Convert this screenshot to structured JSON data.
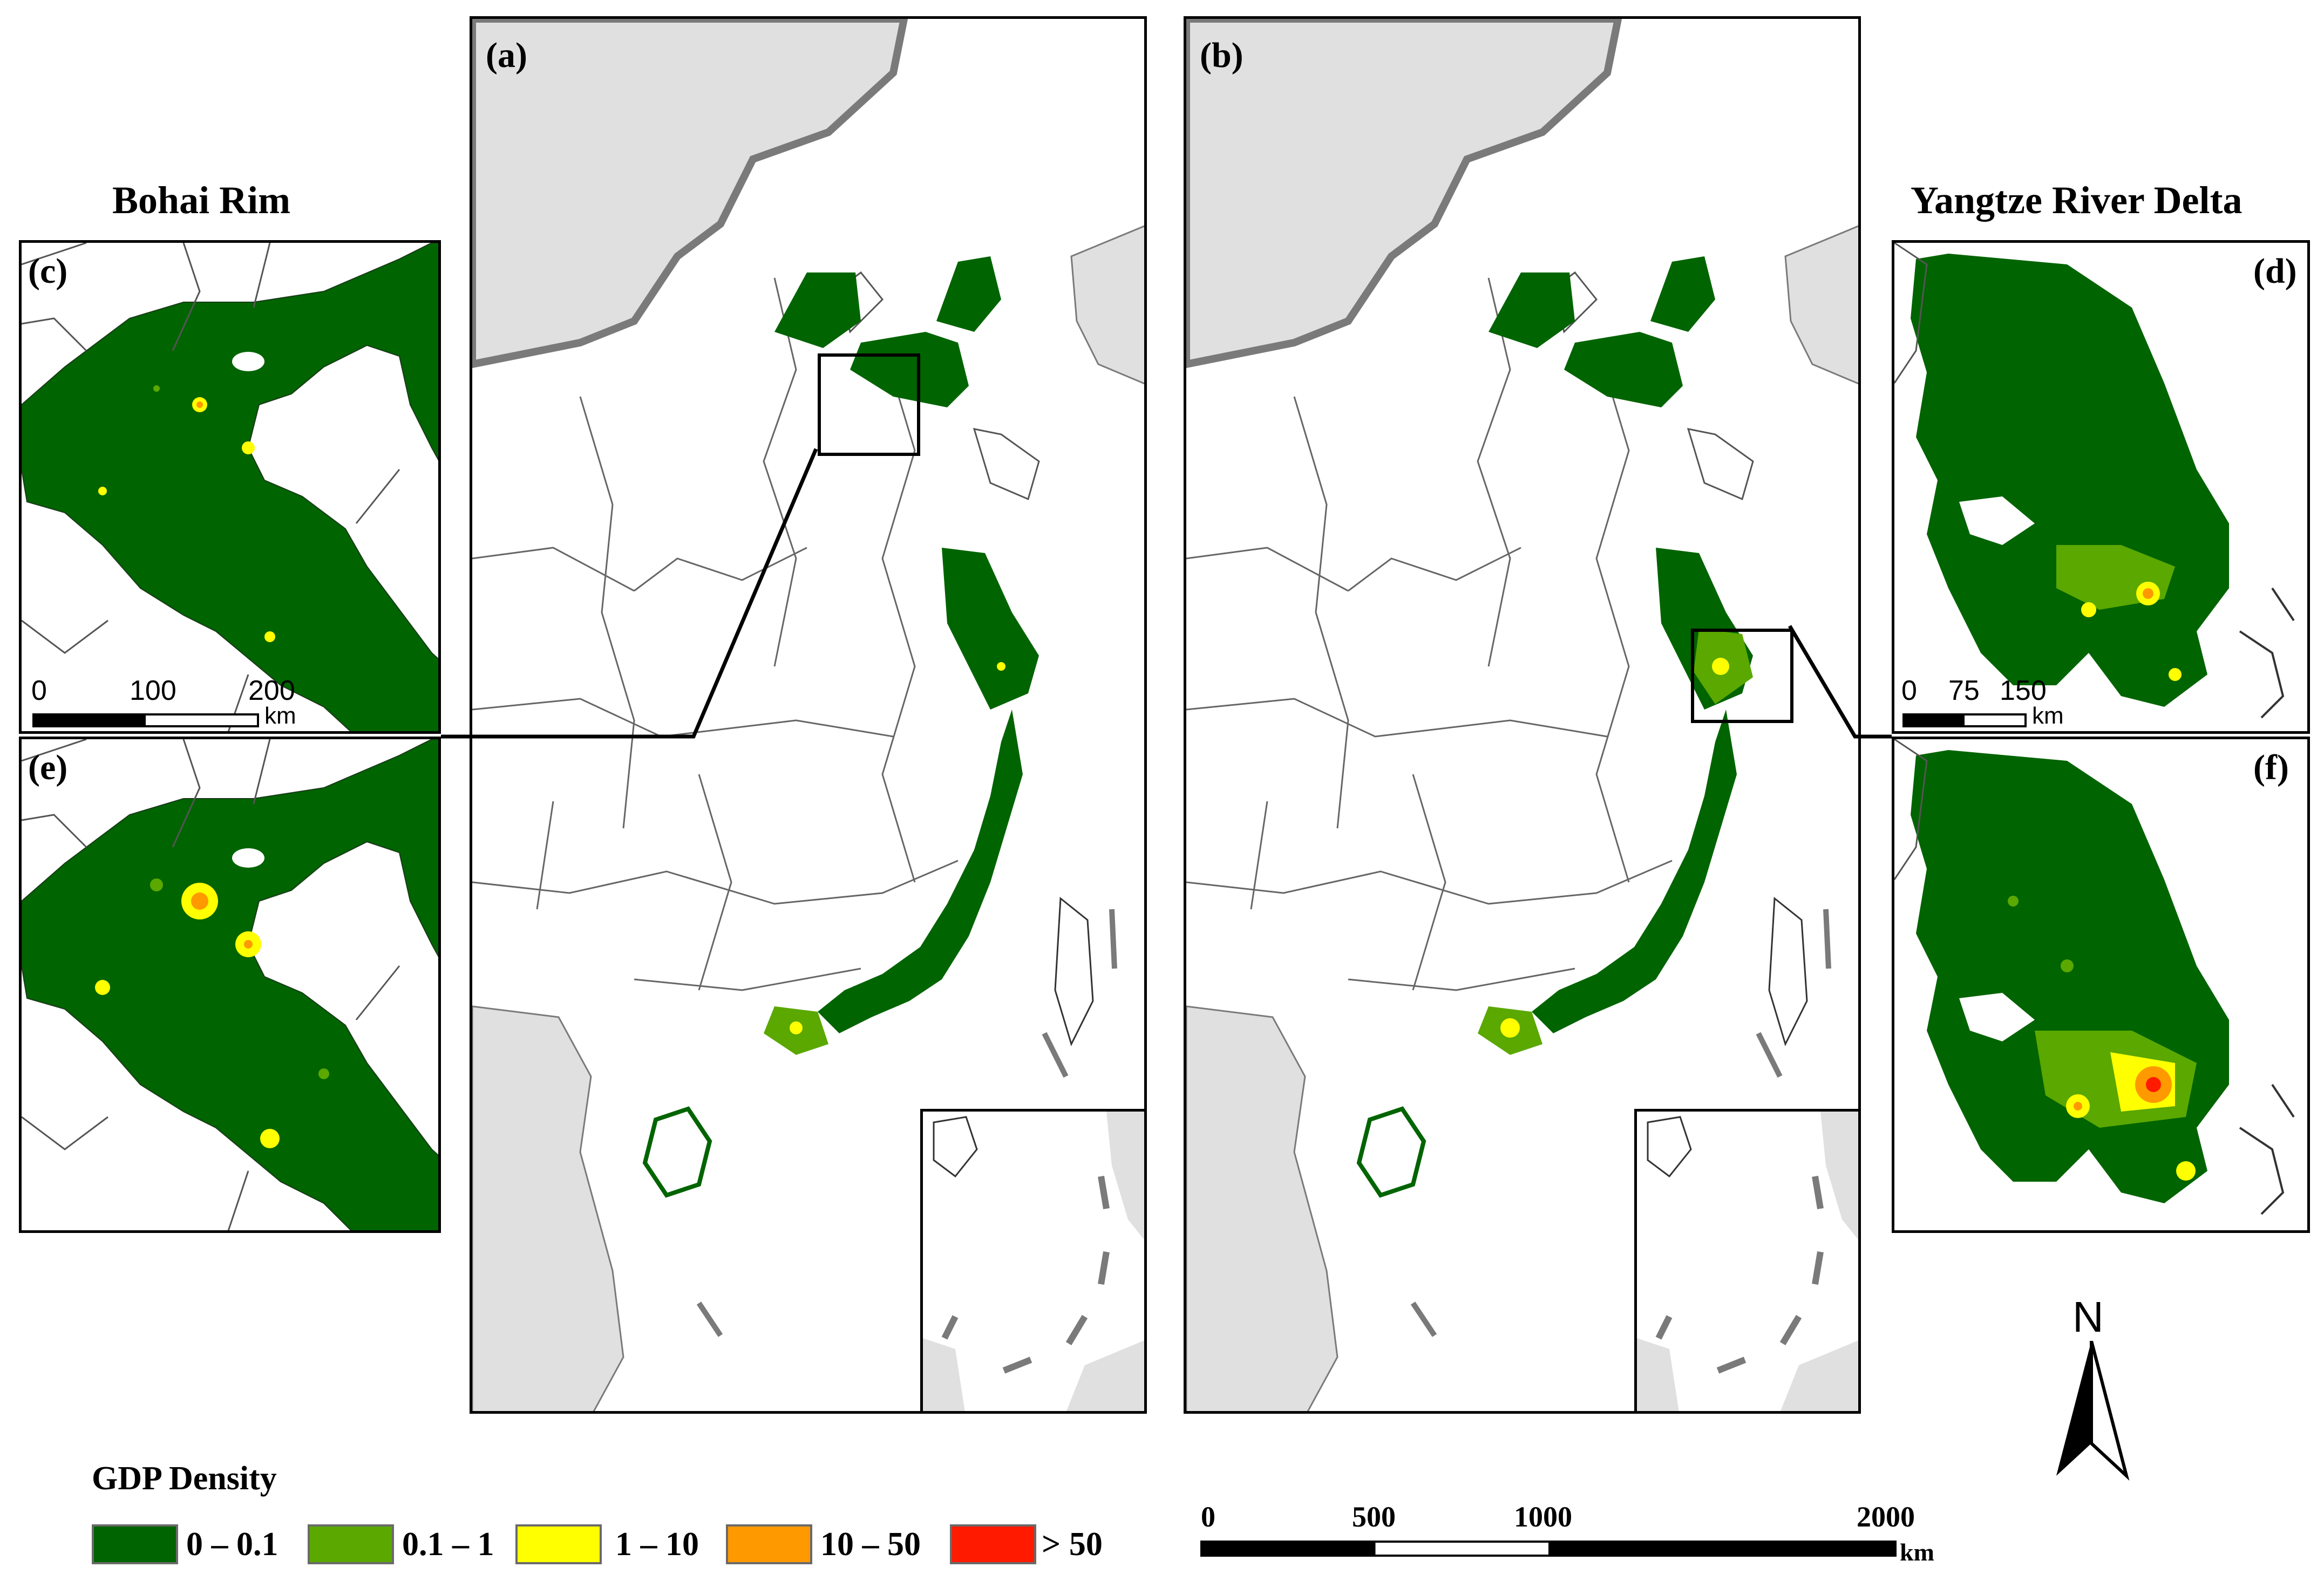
{
  "titles": {
    "left_region": "Bohai Rim",
    "right_region": "Yangtze River Delta"
  },
  "panels": {
    "a": "(a)",
    "b": "(b)",
    "c": "(c)",
    "d": "(d)",
    "e": "(e)",
    "f": "(f)"
  },
  "legend": {
    "title": "GDP Density",
    "classes": [
      {
        "label": "0 – 0.1",
        "color": "#006400"
      },
      {
        "label": "0.1 – 1",
        "color": "#5aa800"
      },
      {
        "label": "1 – 10",
        "color": "#ffff00"
      },
      {
        "label": "10 – 50",
        "color": "#ff9900"
      },
      {
        "label": "> 50",
        "color": "#ff1a00"
      }
    ]
  },
  "main_scalebar": {
    "ticks": [
      "0",
      "500",
      "1000",
      "2000"
    ],
    "unit": "km"
  },
  "bohai_scalebar": {
    "ticks": [
      "0",
      "100",
      "200"
    ],
    "unit": "km"
  },
  "yrd_scalebar": {
    "ticks": [
      "0",
      "75",
      "150"
    ],
    "unit": "km"
  },
  "north_arrow": "N",
  "colors": {
    "land_gray": "#e0e0e0",
    "border_gray": "#7a7a7a",
    "coast_dark": "#5a5a5a"
  }
}
